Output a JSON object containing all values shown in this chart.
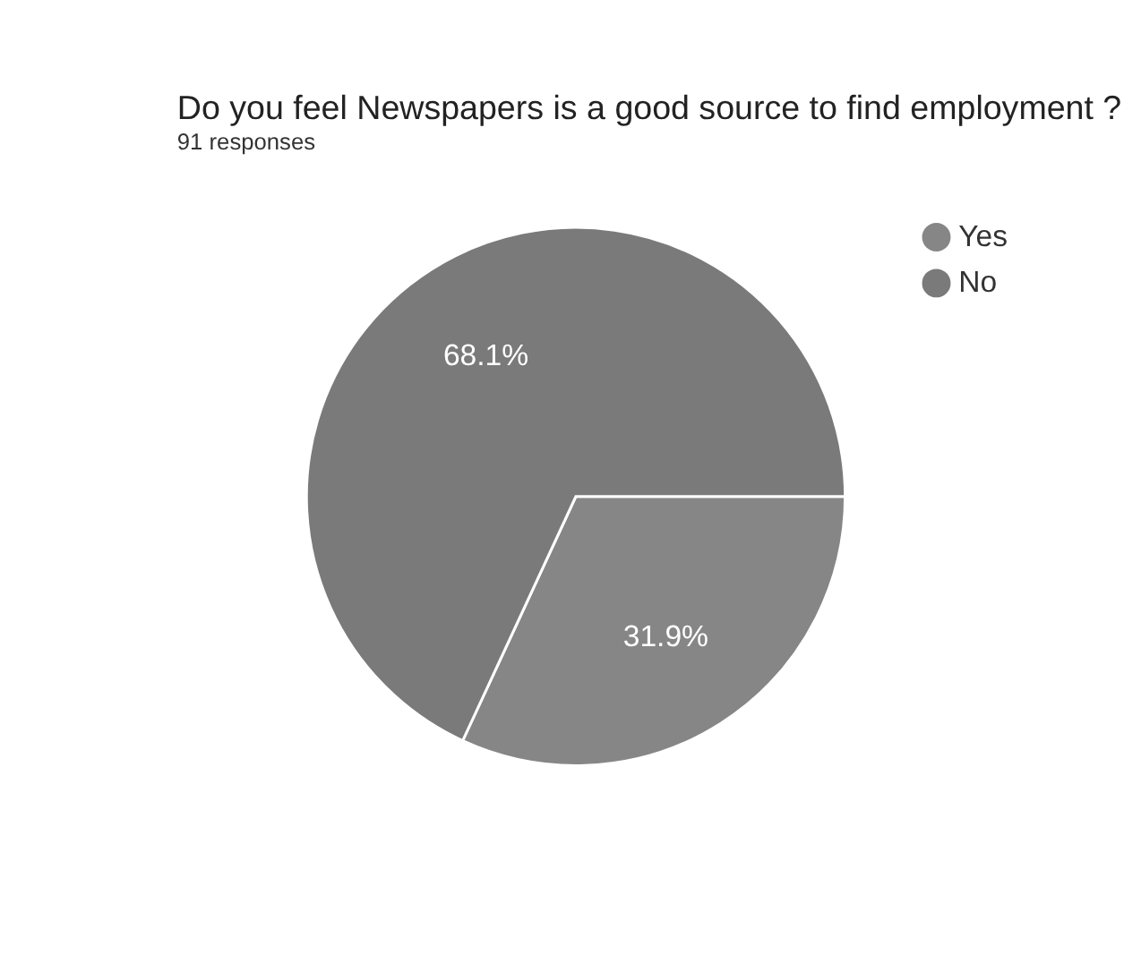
{
  "chart_data": {
    "type": "pie",
    "title": "Do you feel Newspapers is a good source to find employment ?",
    "subtitle": "91 responses",
    "categories": [
      "Yes",
      "No"
    ],
    "values": [
      31.9,
      68.1
    ],
    "colors": [
      "#868686",
      "#7a7a7a"
    ],
    "value_labels": [
      "31.9%",
      "68.1%"
    ],
    "legend": "right"
  }
}
